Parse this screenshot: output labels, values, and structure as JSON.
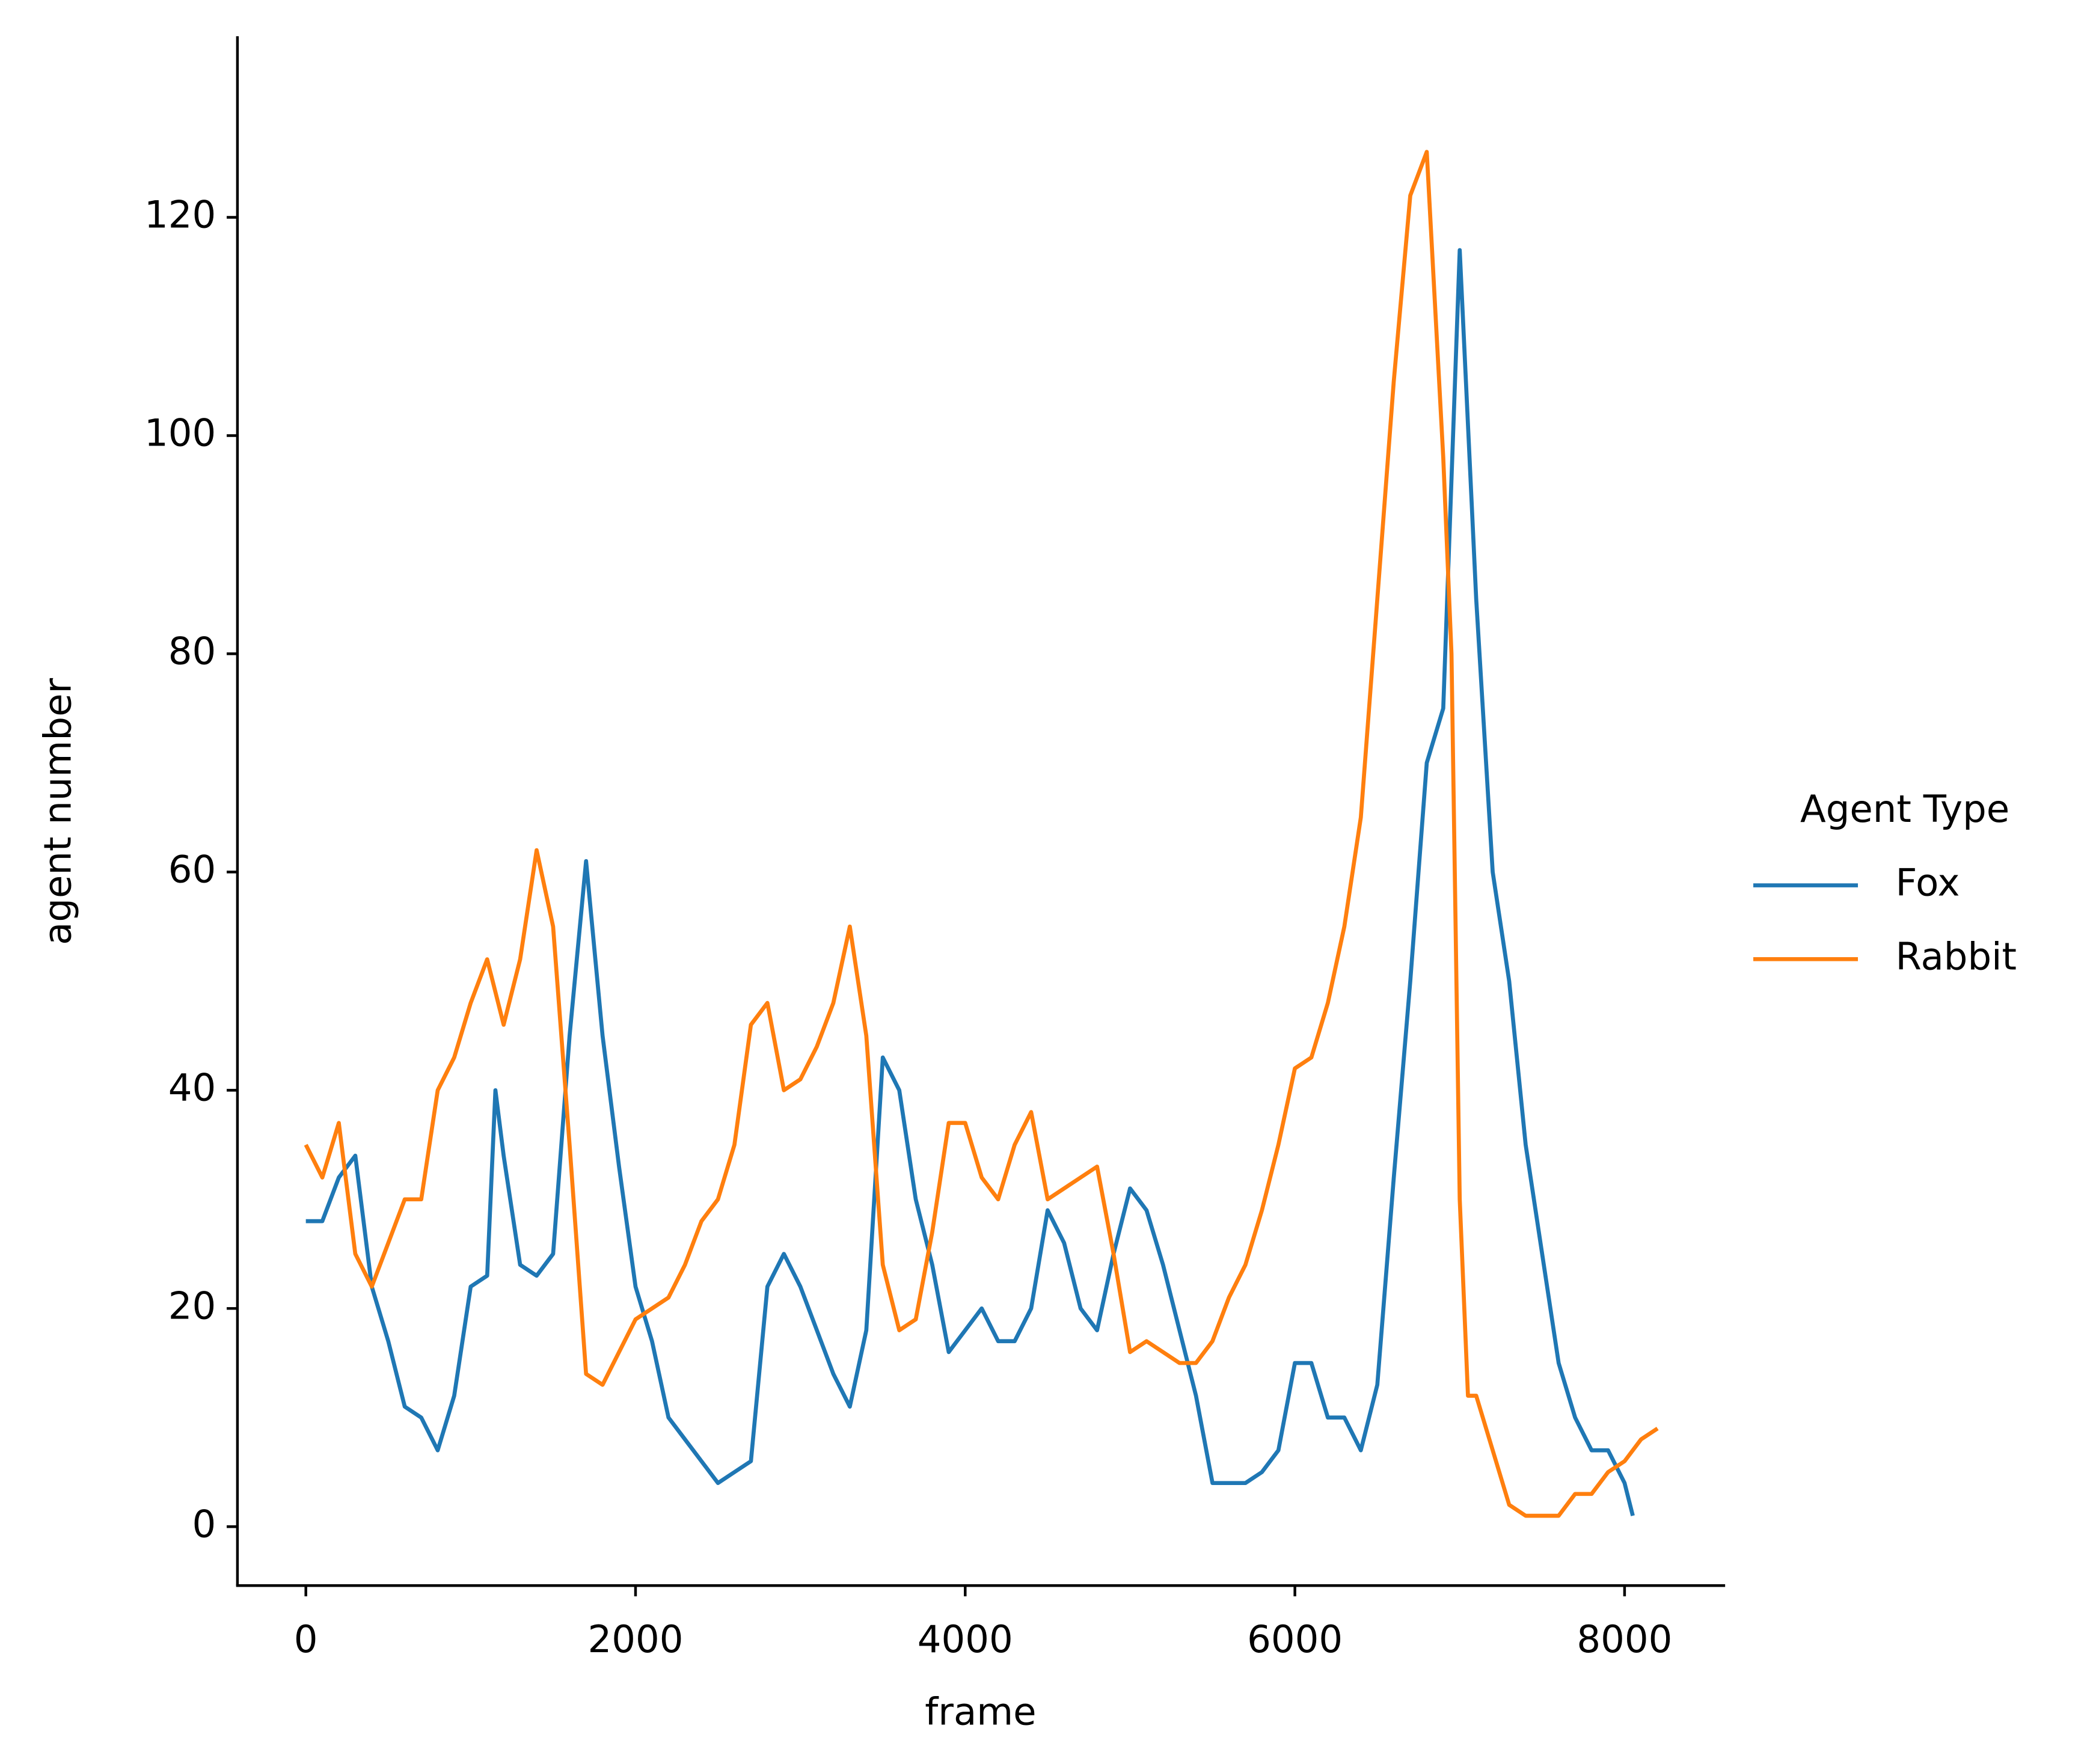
{
  "chart_data": {
    "type": "line",
    "x_label": "frame",
    "y_label": "agent number",
    "legend_title": "Agent Type",
    "legend": "right",
    "xlim": [
      -415,
      8610
    ],
    "ylim": [
      -5.4,
      136.6
    ],
    "xticks": [
      0,
      2000,
      4000,
      6000,
      8000
    ],
    "yticks": [
      0,
      20,
      40,
      60,
      80,
      100,
      120
    ],
    "series": [
      {
        "name": "Fox",
        "color": "#1f77b4",
        "x": [
          0,
          100,
          200,
          300,
          400,
          500,
          600,
          700,
          800,
          900,
          1000,
          1100,
          1150,
          1200,
          1300,
          1400,
          1500,
          1600,
          1700,
          1800,
          1900,
          2000,
          2100,
          2200,
          2300,
          2400,
          2500,
          2600,
          2700,
          2800,
          2900,
          3000,
          3100,
          3200,
          3300,
          3400,
          3500,
          3600,
          3700,
          3800,
          3900,
          4000,
          4100,
          4200,
          4300,
          4400,
          4500,
          4600,
          4700,
          4800,
          4900,
          5000,
          5100,
          5200,
          5300,
          5400,
          5500,
          5600,
          5700,
          5800,
          5900,
          6000,
          6100,
          6200,
          6300,
          6400,
          6500,
          6600,
          6700,
          6800,
          6900,
          7000,
          7100,
          7200,
          7300,
          7400,
          7500,
          7600,
          7700,
          7800,
          7900,
          8000,
          8050
        ],
        "values": [
          28,
          28,
          32,
          34,
          22,
          17,
          11,
          10,
          7,
          12,
          22,
          23,
          40,
          34,
          24,
          23,
          25,
          45,
          61,
          45,
          33,
          22,
          17,
          10,
          8,
          6,
          4,
          5,
          6,
          22,
          25,
          22,
          18,
          14,
          11,
          18,
          43,
          40,
          30,
          24,
          16,
          18,
          20,
          17,
          17,
          20,
          29,
          26,
          20,
          18,
          25,
          31,
          29,
          24,
          18,
          12,
          4,
          4,
          4,
          5,
          7,
          15,
          15,
          10,
          10,
          7,
          13,
          32,
          50,
          70,
          75,
          117,
          85,
          60,
          50,
          35,
          25,
          15,
          10,
          7,
          7,
          4,
          1
        ]
      },
      {
        "name": "Rabbit",
        "color": "#ff7f0e",
        "x": [
          0,
          100,
          200,
          300,
          400,
          500,
          600,
          700,
          800,
          900,
          1000,
          1100,
          1200,
          1300,
          1400,
          1500,
          1600,
          1700,
          1800,
          1900,
          2000,
          2100,
          2200,
          2300,
          2400,
          2500,
          2600,
          2700,
          2800,
          2900,
          3000,
          3100,
          3200,
          3300,
          3400,
          3500,
          3600,
          3700,
          3800,
          3900,
          4000,
          4100,
          4200,
          4300,
          4400,
          4500,
          4600,
          4700,
          4800,
          4900,
          5000,
          5100,
          5200,
          5300,
          5400,
          5500,
          5600,
          5700,
          5800,
          5900,
          6000,
          6100,
          6200,
          6300,
          6400,
          6500,
          6600,
          6700,
          6800,
          6900,
          6950,
          7000,
          7050,
          7100,
          7200,
          7300,
          7400,
          7500,
          7600,
          7700,
          7800,
          7900,
          8000,
          8100,
          8200
        ],
        "values": [
          35,
          32,
          37,
          25,
          22,
          26,
          30,
          30,
          40,
          43,
          48,
          52,
          46,
          52,
          62,
          55,
          35,
          14,
          13,
          16,
          19,
          20,
          21,
          24,
          28,
          30,
          35,
          46,
          48,
          40,
          41,
          44,
          48,
          55,
          45,
          24,
          18,
          19,
          27,
          37,
          37,
          32,
          30,
          35,
          38,
          30,
          31,
          32,
          33,
          25,
          16,
          17,
          16,
          15,
          15,
          17,
          21,
          24,
          29,
          35,
          42,
          43,
          48,
          55,
          65,
          85,
          105,
          122,
          126,
          98,
          80,
          30,
          12,
          12,
          7,
          2,
          1,
          1,
          1,
          3,
          3,
          5,
          6,
          8,
          9
        ]
      }
    ]
  }
}
